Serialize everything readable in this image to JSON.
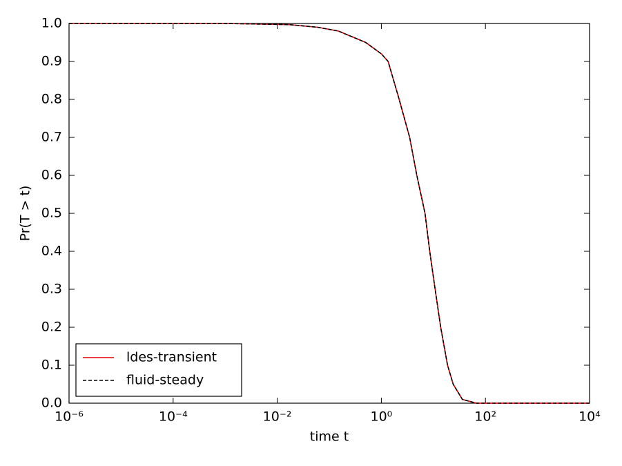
{
  "chart_data": {
    "type": "line",
    "x_label": "time t",
    "y_label": "Pr(T > t)",
    "x": [
      1e-06,
      0.001,
      0.017,
      0.06,
      0.15,
      0.5,
      1,
      1.35,
      2.2,
      3.5,
      4.8,
      6.9,
      8.5,
      10.8,
      13.8,
      18.7,
      24,
      36,
      67,
      10000
    ],
    "series": [
      {
        "name": "ldes-transient",
        "color": "#e00000",
        "dash": "solid",
        "values": [
          1,
          1,
          0.997,
          0.99,
          0.98,
          0.95,
          0.92,
          0.9,
          0.8,
          0.7,
          0.6,
          0.5,
          0.4,
          0.3,
          0.2,
          0.1,
          0.05,
          0.01,
          0,
          0
        ]
      },
      {
        "name": "fluid-steady",
        "color": "#000000",
        "dash": "dashed",
        "values": [
          1,
          1,
          0.997,
          0.99,
          0.98,
          0.95,
          0.92,
          0.9,
          0.8,
          0.7,
          0.6,
          0.5,
          0.4,
          0.3,
          0.2,
          0.1,
          0.05,
          0.01,
          0,
          0
        ]
      }
    ],
    "x_scale": "log",
    "xlim": [
      1e-06,
      10000
    ],
    "xticks": [
      {
        "value": 1e-06,
        "label": "10⁻⁶"
      },
      {
        "value": 0.0001,
        "label": "10⁻⁴"
      },
      {
        "value": 0.01,
        "label": "10⁻²"
      },
      {
        "value": 1,
        "label": "10⁰"
      },
      {
        "value": 100,
        "label": "10²"
      },
      {
        "value": 10000,
        "label": "10⁴"
      }
    ],
    "ylim": [
      0,
      1
    ],
    "yticks": [
      {
        "value": 0,
        "label": "0.0"
      },
      0.1,
      0.2,
      0.3,
      0.4,
      0.5,
      0.6,
      0.7,
      0.8,
      0.9,
      {
        "value": 1,
        "label": "1.0"
      }
    ],
    "legend_position": "lower left"
  }
}
